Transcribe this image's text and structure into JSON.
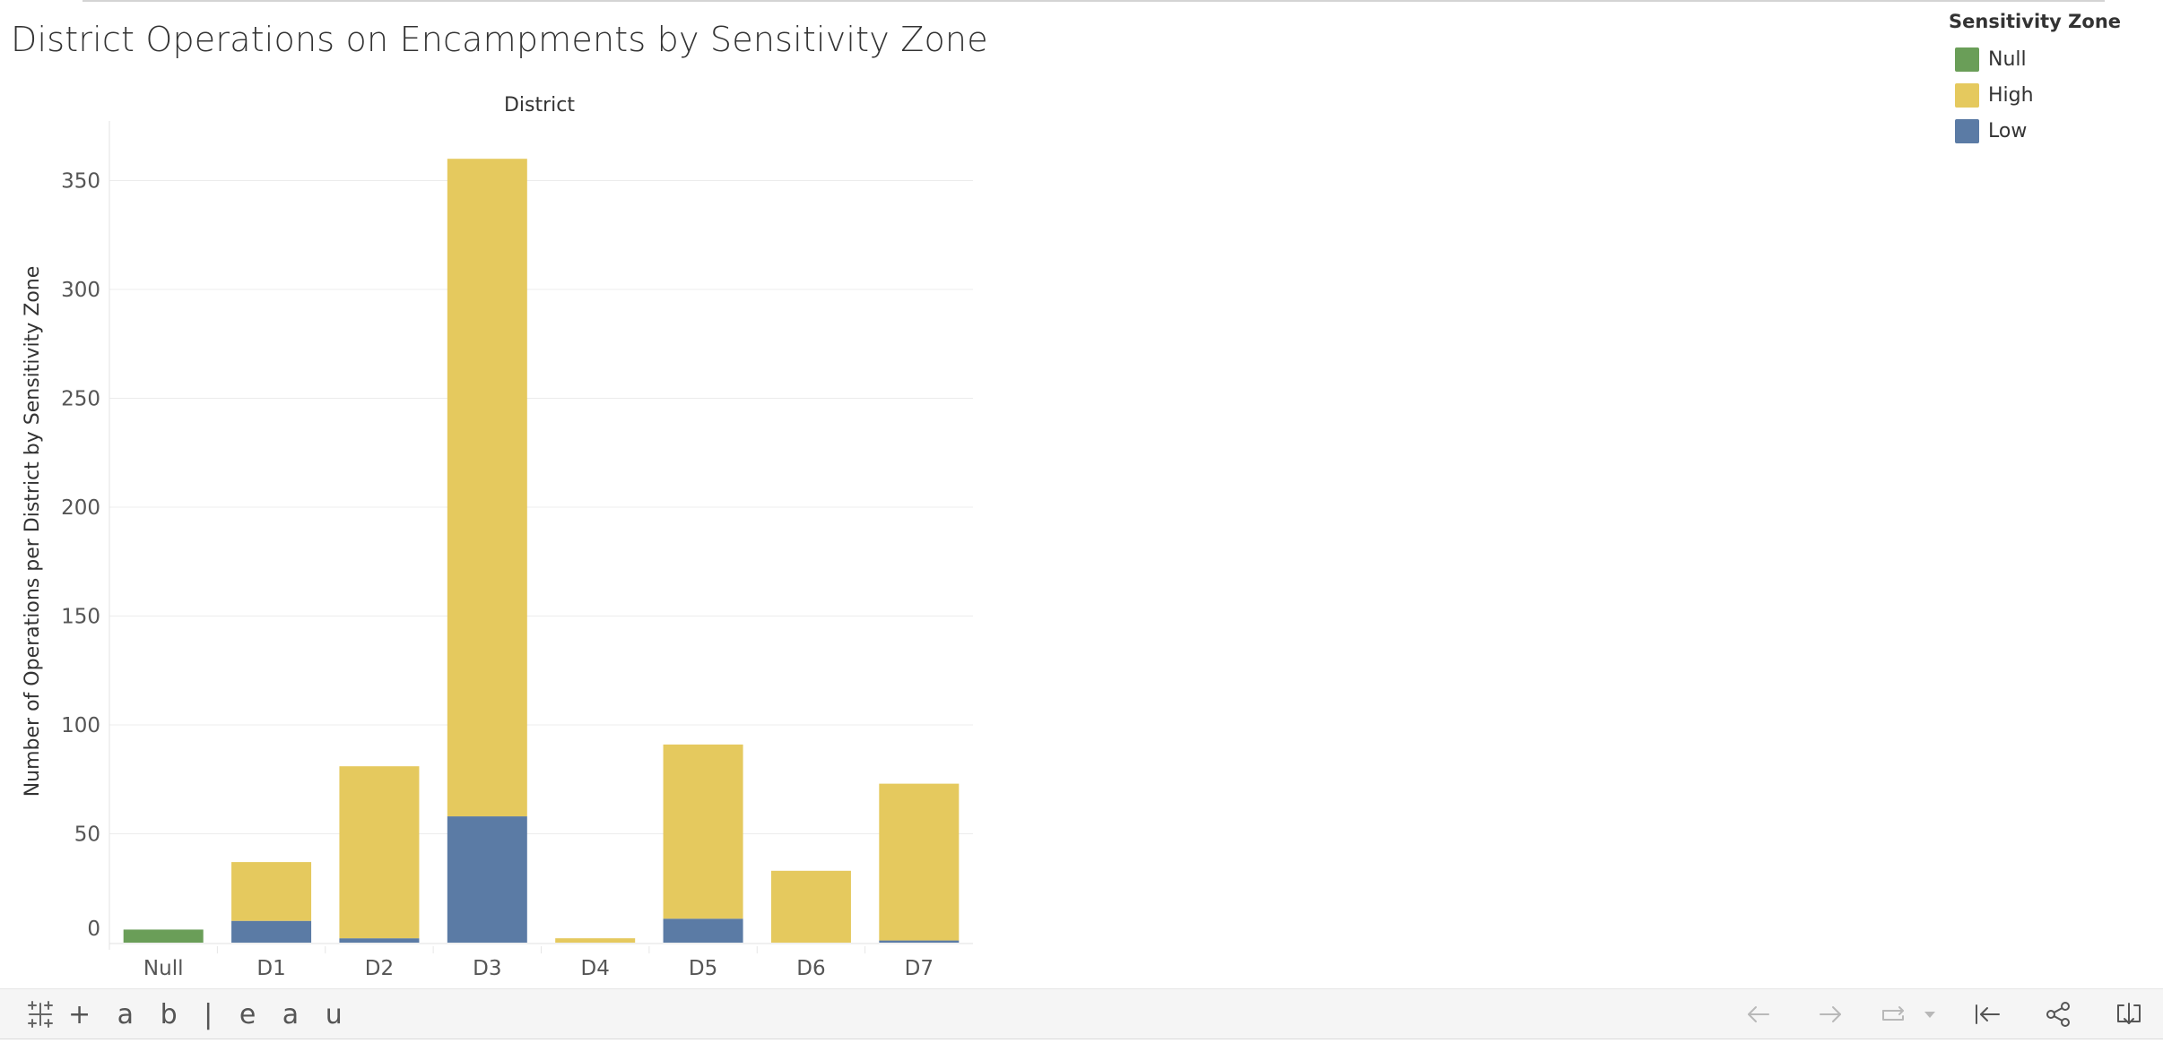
{
  "title": "District Operations on Encampments by Sensitivity Zone",
  "legend": {
    "title": "Sensitivity Zone",
    "items": [
      {
        "label": "Null",
        "color": "#6a9e58"
      },
      {
        "label": "High",
        "color": "#e5c95e"
      },
      {
        "label": "Low",
        "color": "#5b7ba5"
      }
    ]
  },
  "toolbar": {
    "logo_text": "+ a b | e a u",
    "icons": [
      "undo-icon",
      "redo-icon",
      "revert-icon",
      "dropdown-icon",
      "reset-icon",
      "share-icon",
      "download-icon"
    ]
  },
  "chart_data": {
    "type": "bar",
    "stacked": true,
    "title": "District Operations on Encampments by Sensitivity Zone",
    "column_header": "District",
    "xlabel": "",
    "ylabel": "Number of Operations per District by Sensitivity Zone",
    "categories": [
      "Null",
      "D1",
      "D2",
      "D3",
      "D4",
      "D5",
      "D6",
      "D7"
    ],
    "series": [
      {
        "name": "Low",
        "color": "#5b7ba5",
        "values": [
          0,
          10,
          2,
          58,
          0,
          11,
          0,
          1
        ]
      },
      {
        "name": "High",
        "color": "#e5c95e",
        "values": [
          0,
          27,
          79,
          302,
          2,
          80,
          33,
          72
        ]
      },
      {
        "name": "Null",
        "color": "#6a9e58",
        "values": [
          6,
          0,
          0,
          0,
          0,
          0,
          0,
          0
        ]
      }
    ],
    "yticks": [
      0,
      50,
      100,
      150,
      200,
      250,
      300,
      350
    ],
    "ylim": [
      0,
      370
    ],
    "grid": true,
    "legend_position": "top-right"
  }
}
